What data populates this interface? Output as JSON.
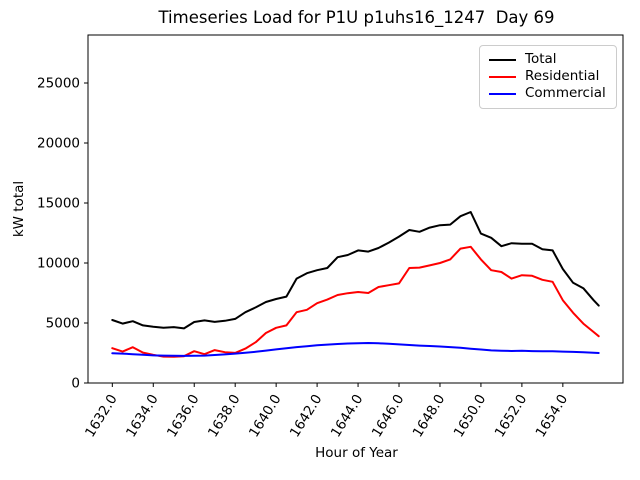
{
  "chart_data": {
    "type": "line",
    "title": "Timeseries Load for P1U p1uhs16_1247  Day 69",
    "xlabel": "Hour of Year",
    "ylabel": "kW total",
    "xlim": [
      1630.8125,
      1656.9375
    ],
    "ylim": [
      0,
      29000
    ],
    "grid": false,
    "legend_position": "upper right",
    "xticks": [
      1632,
      1634,
      1636,
      1638,
      1640,
      1642,
      1644,
      1646,
      1648,
      1650,
      1652,
      1654
    ],
    "xtick_labels": [
      "1632.0",
      "1634.0",
      "1636.0",
      "1638.0",
      "1640.0",
      "1642.0",
      "1644.0",
      "1646.0",
      "1648.0",
      "1650.0",
      "1652.0",
      "1654.0"
    ],
    "yticks": [
      0,
      5000,
      10000,
      15000,
      20000,
      25000
    ],
    "ytick_labels": [
      "0",
      "5000",
      "10000",
      "15000",
      "20000",
      "25000"
    ],
    "x": [
      1632.0,
      1632.5,
      1633.0,
      1633.5,
      1634.0,
      1634.5,
      1635.0,
      1635.5,
      1636.0,
      1636.5,
      1637.0,
      1637.5,
      1638.0,
      1638.5,
      1639.0,
      1639.5,
      1640.0,
      1640.5,
      1641.0,
      1641.5,
      1642.0,
      1642.5,
      1643.0,
      1643.5,
      1644.0,
      1644.5,
      1645.0,
      1645.5,
      1646.0,
      1646.5,
      1647.0,
      1647.5,
      1648.0,
      1648.5,
      1649.0,
      1649.5,
      1650.0,
      1650.5,
      1651.0,
      1651.5,
      1652.0,
      1652.5,
      1653.0,
      1653.5,
      1654.0,
      1654.5,
      1655.0,
      1655.5,
      1655.75
    ],
    "series": [
      {
        "name": "Total",
        "color": "#000000",
        "values": [
          5250,
          4950,
          5150,
          4800,
          4680,
          4600,
          4660,
          4550,
          5080,
          5220,
          5090,
          5180,
          5340,
          5900,
          6300,
          6750,
          7000,
          7200,
          8700,
          9150,
          9400,
          9580,
          10480,
          10670,
          11050,
          10950,
          11250,
          11700,
          12200,
          12750,
          12600,
          12950,
          13150,
          13200,
          13900,
          14250,
          12450,
          12100,
          11400,
          11650,
          11600,
          11600,
          11150,
          11050,
          9500,
          8350,
          7900,
          6900,
          6450
        ]
      },
      {
        "name": "Residential",
        "color": "#ff0000",
        "values": [
          2900,
          2620,
          2980,
          2530,
          2350,
          2200,
          2180,
          2230,
          2650,
          2400,
          2740,
          2570,
          2510,
          2870,
          3400,
          4170,
          4600,
          4800,
          5900,
          6100,
          6650,
          6950,
          7330,
          7480,
          7580,
          7500,
          8000,
          8150,
          8300,
          9580,
          9620,
          9800,
          10000,
          10300,
          11200,
          11350,
          10300,
          9400,
          9250,
          8700,
          8980,
          8930,
          8600,
          8430,
          6900,
          5850,
          4950,
          4250,
          3900
        ]
      },
      {
        "name": "Commercial",
        "color": "#0000ff",
        "values": [
          2480,
          2450,
          2400,
          2350,
          2300,
          2280,
          2270,
          2260,
          2270,
          2280,
          2330,
          2380,
          2450,
          2520,
          2600,
          2700,
          2800,
          2900,
          2990,
          3070,
          3140,
          3200,
          3250,
          3290,
          3320,
          3330,
          3310,
          3270,
          3220,
          3170,
          3120,
          3080,
          3040,
          2990,
          2930,
          2860,
          2790,
          2720,
          2690,
          2670,
          2680,
          2660,
          2650,
          2640,
          2620,
          2590,
          2560,
          2520,
          2500
        ]
      }
    ]
  }
}
